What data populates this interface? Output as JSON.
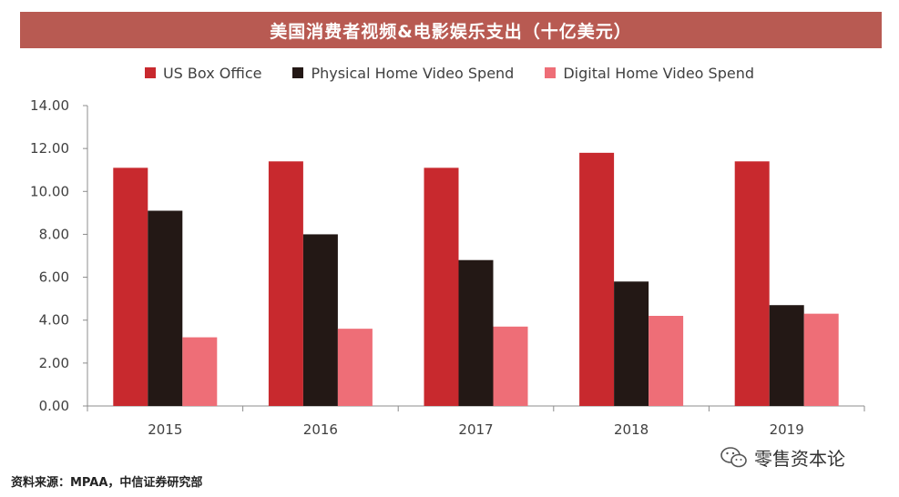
{
  "title": "美国消费者视频&电影娱乐支出（十亿美元）",
  "source": "资料来源：MPAA，中信证券研究部",
  "watermark": {
    "text": "零售资本论",
    "icon": "wechat-icon"
  },
  "chart_data": {
    "type": "bar",
    "categories": [
      "2015",
      "2016",
      "2017",
      "2018",
      "2019"
    ],
    "series": [
      {
        "name": "US Box Office",
        "values": [
          11.1,
          11.4,
          11.1,
          11.8,
          11.4
        ],
        "color": "#c8292e"
      },
      {
        "name": "Physical Home Video Spend",
        "values": [
          9.1,
          8.0,
          6.8,
          5.8,
          4.7
        ],
        "color": "#231815"
      },
      {
        "name": "Digital Home Video Spend",
        "values": [
          3.2,
          3.6,
          3.7,
          4.2,
          4.3
        ],
        "color": "#ee6e77"
      }
    ],
    "ylim": [
      0,
      14
    ],
    "yticks": [
      "0.00",
      "2.00",
      "4.00",
      "6.00",
      "8.00",
      "10.00",
      "12.00",
      "14.00"
    ],
    "grid": false,
    "legend": "top-center"
  }
}
